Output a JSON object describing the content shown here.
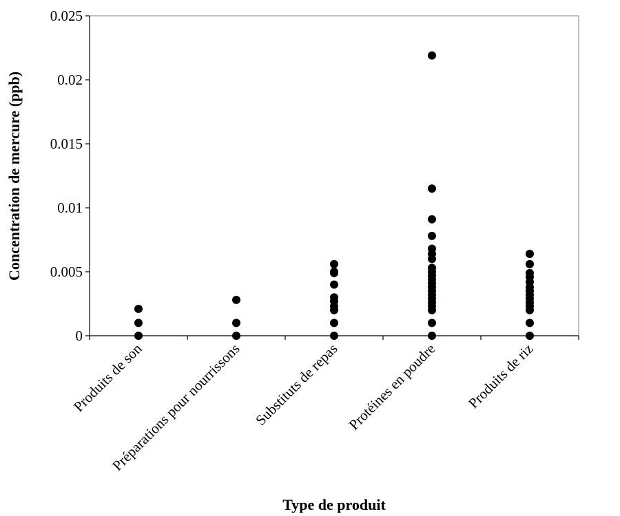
{
  "chart_data": {
    "type": "scatter",
    "xlabel": "Type de produit",
    "ylabel": "Concentration de mercure (ppb)",
    "ylim": [
      0,
      0.025
    ],
    "yticks": [
      "0",
      "0.005",
      "0.01",
      "0.015",
      "0.02",
      "0.025"
    ],
    "ytick_values": [
      0,
      0.005,
      0.01,
      0.015,
      0.02,
      0.025
    ],
    "categories": [
      "Produits de son",
      "Préparations pour nourrissons",
      "Substituts de repas",
      "Protéines en poudre",
      "Produits de riz"
    ],
    "grid": false,
    "legend": "none",
    "marker_color": "#000000",
    "series": [
      {
        "category": "Produits de son",
        "values": [
          0,
          0.001,
          0.0021
        ]
      },
      {
        "category": "Préparations pour nourrissons",
        "values": [
          0,
          0.001,
          0.0028
        ]
      },
      {
        "category": "Substituts de repas",
        "values": [
          0,
          0.001,
          0.002,
          0.0023,
          0.0027,
          0.003,
          0.004,
          0.0049,
          0.005,
          0.0056
        ]
      },
      {
        "category": "Protéines en poudre",
        "values": [
          0,
          0.001,
          0.002,
          0.0023,
          0.0026,
          0.0029,
          0.0032,
          0.0035,
          0.0038,
          0.0041,
          0.0044,
          0.0047,
          0.005,
          0.0053,
          0.006,
          0.0064,
          0.0068,
          0.0078,
          0.0091,
          0.0115,
          0.0219
        ]
      },
      {
        "category": "Produits de riz",
        "values": [
          0,
          0.001,
          0.002,
          0.0023,
          0.0026,
          0.0029,
          0.0032,
          0.0035,
          0.0038,
          0.0042,
          0.0046,
          0.0049,
          0.0056,
          0.0064
        ]
      }
    ]
  }
}
